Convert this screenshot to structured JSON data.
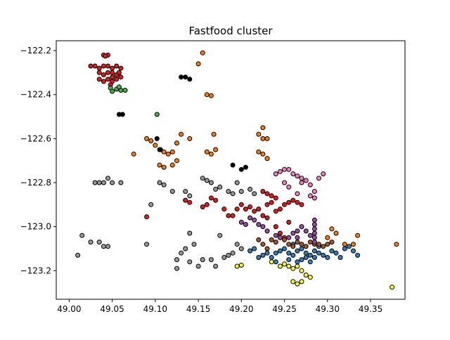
{
  "chart_data": {
    "type": "scatter",
    "title": "Fastfood cluster",
    "xlabel": "",
    "ylabel": "",
    "xlim": [
      48.985,
      49.39
    ],
    "ylim": [
      -123.33,
      -122.155
    ],
    "grid": false,
    "x_ticks": [
      49.0,
      49.05,
      49.1,
      49.15,
      49.2,
      49.25,
      49.3,
      49.35
    ],
    "x_tick_labels": [
      "49.00",
      "49.05",
      "49.10",
      "49.15",
      "49.20",
      "49.25",
      "49.30",
      "49.35"
    ],
    "y_ticks": [
      -122.2,
      -122.4,
      -122.6,
      -122.8,
      -123.0,
      -123.2
    ],
    "y_tick_labels": [
      "−122.2",
      "−122.4",
      "−122.6",
      "−122.8",
      "−123.0",
      "−123.2"
    ],
    "series": [
      {
        "color": "#e41a1c",
        "points": [
          [
            49.025,
            -122.27
          ],
          [
            49.03,
            -122.27
          ],
          [
            49.035,
            -122.28
          ],
          [
            49.04,
            -122.27
          ],
          [
            49.045,
            -122.27
          ],
          [
            49.05,
            -122.28
          ],
          [
            49.055,
            -122.27
          ],
          [
            49.04,
            -122.22
          ],
          [
            49.045,
            -122.22
          ],
          [
            49.042,
            -122.225
          ],
          [
            49.035,
            -122.3
          ],
          [
            49.04,
            -122.31
          ],
          [
            49.045,
            -122.3
          ],
          [
            49.05,
            -122.3
          ],
          [
            49.055,
            -122.31
          ],
          [
            49.058,
            -122.3
          ],
          [
            49.035,
            -122.33
          ],
          [
            49.04,
            -122.34
          ],
          [
            49.045,
            -122.33
          ],
          [
            49.05,
            -122.34
          ],
          [
            49.055,
            -122.33
          ],
          [
            49.06,
            -122.32
          ],
          [
            49.06,
            -122.28
          ],
          [
            49.048,
            -122.355
          ],
          [
            49.05,
            -122.32
          ],
          [
            49.09,
            -122.955
          ],
          [
            49.135,
            -122.88
          ],
          [
            49.14,
            -122.89
          ],
          [
            49.155,
            -122.91
          ],
          [
            49.16,
            -122.9
          ],
          [
            49.165,
            -122.87
          ],
          [
            49.17,
            -122.88
          ],
          [
            49.18,
            -122.92
          ],
          [
            49.185,
            -122.95
          ],
          [
            49.19,
            -122.95
          ],
          [
            49.195,
            -122.92
          ],
          [
            49.2,
            -122.9
          ],
          [
            49.205,
            -122.92
          ],
          [
            49.21,
            -122.91
          ],
          [
            49.215,
            -122.93
          ],
          [
            49.22,
            -122.92
          ],
          [
            49.225,
            -122.84
          ],
          [
            49.23,
            -122.85
          ],
          [
            49.235,
            -122.86
          ],
          [
            49.24,
            -122.87
          ],
          [
            49.23,
            -122.9
          ],
          [
            49.235,
            -122.89
          ],
          [
            49.24,
            -122.93
          ],
          [
            49.245,
            -122.92
          ],
          [
            49.25,
            -122.9
          ],
          [
            49.255,
            -122.89
          ],
          [
            49.26,
            -122.88
          ],
          [
            49.265,
            -122.89
          ],
          [
            49.27,
            -122.9
          ],
          [
            49.24,
            -123.0
          ],
          [
            49.245,
            -123.03
          ],
          [
            49.25,
            -123.05
          ],
          [
            49.255,
            -122.98
          ],
          [
            49.23,
            -122.96
          ],
          [
            49.225,
            -122.95
          ]
        ]
      },
      {
        "color": "#ff7f00",
        "points": [
          [
            49.155,
            -122.21
          ],
          [
            49.15,
            -122.26
          ],
          [
            49.16,
            -122.4
          ],
          [
            49.165,
            -122.405
          ],
          [
            49.075,
            -122.67
          ],
          [
            49.09,
            -122.6
          ],
          [
            49.095,
            -122.61
          ],
          [
            49.1,
            -122.63
          ],
          [
            49.105,
            -122.65
          ],
          [
            49.11,
            -122.66
          ],
          [
            49.115,
            -122.67
          ],
          [
            49.12,
            -122.66
          ],
          [
            49.125,
            -122.62
          ],
          [
            49.13,
            -122.58
          ],
          [
            49.14,
            -122.6
          ],
          [
            49.105,
            -122.72
          ],
          [
            49.11,
            -122.73
          ],
          [
            49.12,
            -122.72
          ],
          [
            49.125,
            -122.7
          ],
          [
            49.16,
            -122.66
          ],
          [
            49.165,
            -122.67
          ],
          [
            49.17,
            -122.65
          ],
          [
            49.168,
            -122.58
          ],
          [
            49.22,
            -122.58
          ],
          [
            49.225,
            -122.6
          ],
          [
            49.22,
            -122.66
          ],
          [
            49.225,
            -122.67
          ],
          [
            49.23,
            -122.69
          ],
          [
            49.225,
            -122.55
          ],
          [
            49.23,
            -122.6
          ],
          [
            49.305,
            -123.01
          ],
          [
            49.31,
            -123.03
          ],
          [
            49.3,
            -123.05
          ],
          [
            49.32,
            -123.08
          ],
          [
            49.33,
            -123.08
          ],
          [
            49.335,
            -123.04
          ],
          [
            49.38,
            -123.08
          ]
        ]
      },
      {
        "color": "#4daf4a",
        "points": [
          [
            49.048,
            -122.37
          ],
          [
            49.055,
            -122.375
          ],
          [
            49.06,
            -122.38
          ],
          [
            49.065,
            -122.38
          ],
          [
            49.05,
            -122.385
          ],
          [
            49.058,
            -122.365
          ],
          [
            49.102,
            -122.49
          ]
        ]
      },
      {
        "color": "#999999",
        "points": [
          [
            49.01,
            -123.13
          ],
          [
            49.015,
            -123.04
          ],
          [
            49.025,
            -123.07
          ],
          [
            49.035,
            -123.07
          ],
          [
            49.04,
            -123.09
          ],
          [
            49.045,
            -123.09
          ],
          [
            49.03,
            -122.8
          ],
          [
            49.035,
            -122.8
          ],
          [
            49.04,
            -122.8
          ],
          [
            49.045,
            -122.78
          ],
          [
            49.05,
            -122.8
          ],
          [
            49.06,
            -122.8
          ],
          [
            49.09,
            -123.08
          ],
          [
            49.095,
            -122.9
          ],
          [
            49.105,
            -122.8
          ],
          [
            49.11,
            -122.81
          ],
          [
            49.12,
            -122.84
          ],
          [
            49.135,
            -122.84
          ],
          [
            49.14,
            -122.86
          ],
          [
            49.155,
            -122.78
          ],
          [
            49.16,
            -122.79
          ],
          [
            49.165,
            -122.8
          ],
          [
            49.17,
            -122.83
          ],
          [
            49.175,
            -122.82
          ],
          [
            49.185,
            -122.84
          ],
          [
            49.19,
            -122.85
          ],
          [
            49.195,
            -122.8
          ],
          [
            49.2,
            -122.84
          ],
          [
            49.21,
            -122.83
          ],
          [
            49.215,
            -122.85
          ],
          [
            49.14,
            -123.03
          ],
          [
            49.145,
            -123.08
          ],
          [
            49.135,
            -123.1
          ],
          [
            49.13,
            -123.12
          ],
          [
            49.125,
            -123.15
          ],
          [
            49.125,
            -123.19
          ],
          [
            49.14,
            -123.16
          ],
          [
            49.15,
            -123.18
          ],
          [
            49.155,
            -123.15
          ],
          [
            49.165,
            -123.15
          ],
          [
            49.17,
            -123.18
          ],
          [
            49.18,
            -123.14
          ],
          [
            49.185,
            -123.13
          ],
          [
            49.19,
            -123.12
          ],
          [
            49.195,
            -123.08
          ],
          [
            49.2,
            -123.1
          ],
          [
            49.175,
            -123.04
          ]
        ]
      },
      {
        "color": "#000000",
        "points": [
          [
            49.13,
            -122.32
          ],
          [
            49.135,
            -122.32
          ],
          [
            49.14,
            -122.33
          ],
          [
            49.058,
            -122.49
          ],
          [
            49.062,
            -122.49
          ],
          [
            49.102,
            -122.6
          ],
          [
            49.106,
            -122.65
          ],
          [
            49.19,
            -122.72
          ],
          [
            49.2,
            -122.74
          ],
          [
            49.205,
            -122.73
          ]
        ]
      },
      {
        "color": "#ffff33",
        "points": [
          [
            49.195,
            -123.18
          ],
          [
            49.2,
            -123.175
          ],
          [
            49.235,
            -123.16
          ],
          [
            49.245,
            -123.18
          ],
          [
            49.25,
            -123.17
          ],
          [
            49.255,
            -123.18
          ],
          [
            49.26,
            -123.19
          ],
          [
            49.265,
            -123.18
          ],
          [
            49.27,
            -123.2
          ],
          [
            49.275,
            -123.22
          ],
          [
            49.28,
            -123.23
          ],
          [
            49.26,
            -123.25
          ],
          [
            49.265,
            -123.26
          ],
          [
            49.27,
            -123.25
          ],
          [
            49.375,
            -123.275
          ]
        ]
      },
      {
        "color": "#377eb8",
        "points": [
          [
            49.21,
            -123.11
          ],
          [
            49.215,
            -123.1
          ],
          [
            49.22,
            -123.14
          ],
          [
            49.225,
            -123.13
          ],
          [
            49.23,
            -123.12
          ],
          [
            49.235,
            -123.14
          ],
          [
            49.24,
            -123.12
          ],
          [
            49.245,
            -123.11
          ],
          [
            49.25,
            -123.1
          ],
          [
            49.255,
            -123.12
          ],
          [
            49.26,
            -123.13
          ],
          [
            49.265,
            -123.11
          ],
          [
            49.27,
            -123.1
          ],
          [
            49.275,
            -123.12
          ],
          [
            49.28,
            -123.13
          ],
          [
            49.285,
            -123.11
          ],
          [
            49.29,
            -123.12
          ],
          [
            49.295,
            -123.13
          ],
          [
            49.3,
            -123.14
          ],
          [
            49.305,
            -123.11
          ],
          [
            49.31,
            -123.12
          ],
          [
            49.315,
            -123.14
          ],
          [
            49.32,
            -123.1
          ],
          [
            49.325,
            -123.09
          ],
          [
            49.33,
            -123.11
          ],
          [
            49.335,
            -123.13
          ],
          [
            49.255,
            -123.15
          ],
          [
            49.265,
            -123.16
          ],
          [
            49.27,
            -123.15
          ],
          [
            49.28,
            -123.16
          ],
          [
            49.285,
            -123.14
          ],
          [
            49.24,
            -123.16
          ],
          [
            49.275,
            -123.14
          ],
          [
            49.26,
            -123.08
          ],
          [
            49.29,
            -123.09
          ]
        ]
      },
      {
        "color": "#a65628",
        "points": [
          [
            49.22,
            -123.06
          ],
          [
            49.225,
            -123.08
          ],
          [
            49.23,
            -123.1
          ],
          [
            49.235,
            -123.06
          ],
          [
            49.24,
            -123.07
          ],
          [
            49.245,
            -123.05
          ],
          [
            49.25,
            -123.06
          ],
          [
            49.255,
            -123.08
          ],
          [
            49.26,
            -123.09
          ],
          [
            49.265,
            -123.07
          ],
          [
            49.27,
            -123.08
          ],
          [
            49.275,
            -123.09
          ],
          [
            49.28,
            -123.07
          ],
          [
            49.285,
            -123.08
          ],
          [
            49.29,
            -123.08
          ],
          [
            49.295,
            -123.09
          ],
          [
            49.3,
            -123.08
          ],
          [
            49.305,
            -123.07
          ]
        ]
      },
      {
        "color": "#f781bf",
        "points": [
          [
            49.24,
            -122.76
          ],
          [
            49.245,
            -122.75
          ],
          [
            49.25,
            -122.74
          ],
          [
            49.255,
            -122.74
          ],
          [
            49.26,
            -122.76
          ],
          [
            49.265,
            -122.77
          ],
          [
            49.27,
            -122.78
          ],
          [
            49.275,
            -122.79
          ],
          [
            49.28,
            -122.81
          ],
          [
            49.285,
            -122.84
          ],
          [
            49.28,
            -122.86
          ],
          [
            49.285,
            -122.87
          ],
          [
            49.295,
            -122.76
          ],
          [
            49.29,
            -122.78
          ],
          [
            49.25,
            -122.8
          ],
          [
            49.255,
            -122.82
          ],
          [
            49.265,
            -122.85
          ],
          [
            49.27,
            -122.8
          ]
        ]
      },
      {
        "color": "#984ea3",
        "points": [
          [
            49.2,
            -122.98
          ],
          [
            49.205,
            -122.99
          ],
          [
            49.21,
            -122.96
          ],
          [
            49.215,
            -122.97
          ],
          [
            49.22,
            -122.99
          ],
          [
            49.225,
            -123.0
          ],
          [
            49.23,
            -123.02
          ],
          [
            49.24,
            -123.04
          ],
          [
            49.245,
            -123.05
          ],
          [
            49.26,
            -123.03
          ],
          [
            49.265,
            -123.02
          ],
          [
            49.27,
            -123.0
          ],
          [
            49.275,
            -123.02
          ],
          [
            49.28,
            -123.04
          ],
          [
            49.285,
            -123.01
          ],
          [
            49.285,
            -123.03
          ],
          [
            49.285,
            -123.05
          ],
          [
            49.285,
            -123.07
          ],
          [
            49.285,
            -122.97
          ],
          [
            49.285,
            -122.99
          ],
          [
            49.255,
            -123.05
          ],
          [
            49.265,
            -123.05
          ]
        ]
      }
    ]
  }
}
